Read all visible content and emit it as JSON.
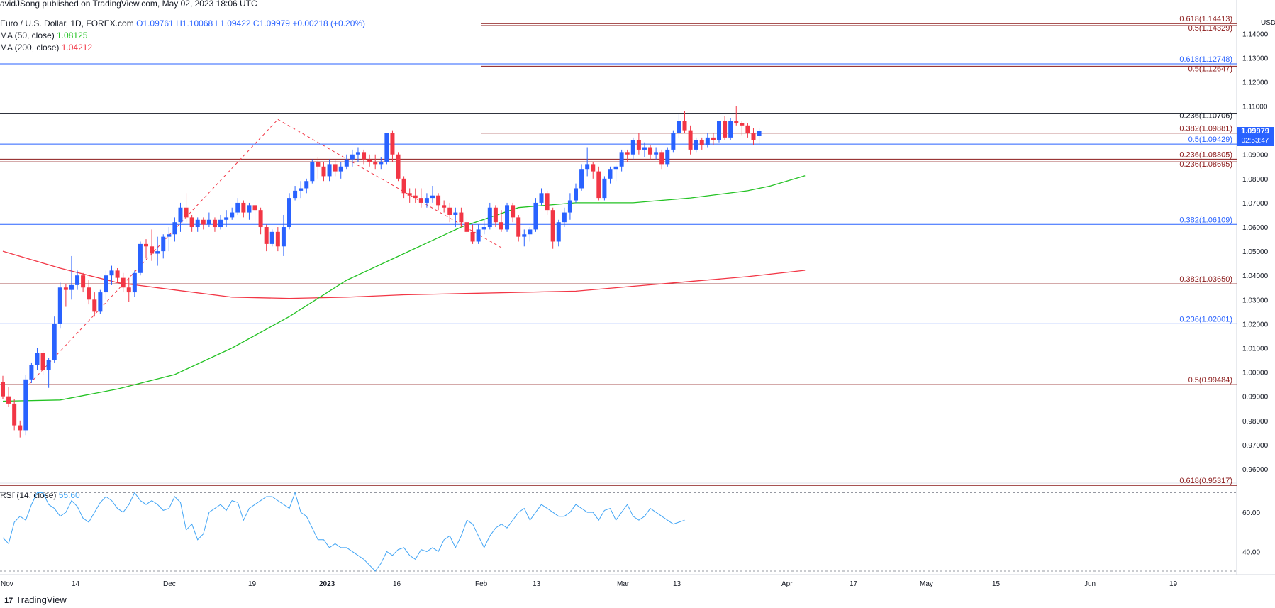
{
  "header": {
    "credit": "avidJSong published on TradingView.com, May 02, 2023 18:06 UTC",
    "symbol": "Euro / U.S. Dollar, 1D, FOREX.com",
    "ohlc": {
      "o": "O1.09761",
      "h": "H1.10068",
      "l": "L1.09422",
      "c": "C1.09979",
      "chg": "+0.00218 (+0.20%)"
    },
    "ma50_label": "MA (50, close)",
    "ma50_value": "1.08125",
    "ma200_label": "MA (200, close)",
    "ma200_value": "1.04212",
    "rsi_label": "RSI (14, close)",
    "rsi_value": "55.60"
  },
  "price_box": {
    "price": "1.09979",
    "countdown": "02:53:47"
  },
  "brand": "TradingView",
  "colors": {
    "up": "#2962ff",
    "down": "#f23645",
    "ma50": "#23c223",
    "ma200": "#f23645",
    "fib_red": "#8b1a1a",
    "fib_blue": "#2962ff",
    "rsi": "#42a5f5"
  },
  "chart_data": {
    "type": "candlestick",
    "currency": "USD",
    "ylim": [
      0.955,
      1.148
    ],
    "y_ticks": [
      "1.14000",
      "1.13000",
      "1.12000",
      "1.11000",
      "1.10000",
      "1.09000",
      "1.08000",
      "1.07000",
      "1.06000",
      "1.05000",
      "1.04000",
      "1.03000",
      "1.02000",
      "1.01000",
      "1.00000",
      "0.99000",
      "0.98000",
      "0.97000",
      "0.96000"
    ],
    "x_ticks": [
      "Nov",
      "14",
      "Dec",
      "19",
      "2023",
      "16",
      "Feb",
      "13",
      "Mar",
      "13",
      "Apr",
      "17",
      "May",
      "15",
      "Jun",
      "19"
    ],
    "fib_levels": [
      {
        "label": "0.618(1.14413)",
        "value": 1.14413,
        "color": "red"
      },
      {
        "label": "0.5(1.14329)",
        "value": 1.14329,
        "color": "red"
      },
      {
        "label": "0.618(1.12748)",
        "value": 1.12748,
        "color": "blue"
      },
      {
        "label": "0.5(1.12647)",
        "value": 1.12647,
        "color": "red"
      },
      {
        "label": "0.382(1.09881)",
        "value": 1.09881,
        "color": "red"
      },
      {
        "label": "0.236(1.10706)",
        "value": 1.10706,
        "color": "black"
      },
      {
        "label": "0.5(1.09429)",
        "value": 1.09429,
        "color": "blue"
      },
      {
        "label": "0.236(1.08805)",
        "value": 1.08805,
        "color": "red"
      },
      {
        "label": "0.236(1.08695)",
        "value": 1.08695,
        "color": "red"
      },
      {
        "label": "0.382(1.06109)",
        "value": 1.06109,
        "color": "blue"
      },
      {
        "label": "0.382(1.03650)",
        "value": 1.0365,
        "color": "red"
      },
      {
        "label": "0.236(1.02001)",
        "value": 1.02001,
        "color": "blue"
      },
      {
        "label": "0.5(0.99484)",
        "value": 0.99484,
        "color": "red"
      },
      {
        "label": "0.618(0.95317)",
        "value": 0.95317,
        "color": "red"
      }
    ],
    "candles_ohlc": [
      [
        0.996,
        0.9985,
        0.989,
        0.99
      ],
      [
        0.99,
        0.994,
        0.9855,
        0.987
      ],
      [
        0.987,
        0.989,
        0.976,
        0.978
      ],
      [
        0.978,
        0.98,
        0.973,
        0.976
      ],
      [
        0.976,
        0.999,
        0.974,
        0.997
      ],
      [
        0.997,
        1.004,
        0.9955,
        1.003
      ],
      [
        1.003,
        1.01,
        1.001,
        1.008
      ],
      [
        1.008,
        1.009,
        0.999,
        1.001
      ],
      [
        1.001,
        1.006,
        0.9935,
        1.005
      ],
      [
        1.005,
        1.023,
        1.004,
        1.02
      ],
      [
        1.02,
        1.037,
        1.018,
        1.035
      ],
      [
        1.035,
        1.0365,
        1.027,
        1.034
      ],
      [
        1.034,
        1.048,
        1.03,
        1.036
      ],
      [
        1.036,
        1.042,
        1.034,
        1.04
      ],
      [
        1.04,
        1.041,
        1.033,
        1.035
      ],
      [
        1.035,
        1.038,
        1.028,
        1.03
      ],
      [
        1.03,
        1.033,
        1.023,
        1.025
      ],
      [
        1.025,
        1.034,
        1.024,
        1.033
      ],
      [
        1.033,
        1.042,
        1.03,
        1.04
      ],
      [
        1.04,
        1.044,
        1.036,
        1.042
      ],
      [
        1.042,
        1.043,
        1.037,
        1.039
      ],
      [
        1.039,
        1.041,
        1.033,
        1.035
      ],
      [
        1.035,
        1.039,
        1.029,
        1.033
      ],
      [
        1.033,
        1.042,
        1.031,
        1.041
      ],
      [
        1.041,
        1.054,
        1.04,
        1.053
      ],
      [
        1.053,
        1.055,
        1.047,
        1.052
      ],
      [
        1.052,
        1.059,
        1.046,
        1.049
      ],
      [
        1.049,
        1.056,
        1.044,
        1.05
      ],
      [
        1.05,
        1.057,
        1.047,
        1.056
      ],
      [
        1.056,
        1.06,
        1.05,
        1.057
      ],
      [
        1.057,
        1.064,
        1.054,
        1.062
      ],
      [
        1.062,
        1.07,
        1.058,
        1.068
      ],
      [
        1.068,
        1.074,
        1.062,
        1.064
      ],
      [
        1.064,
        1.065,
        1.058,
        1.06
      ],
      [
        1.06,
        1.064,
        1.058,
        1.063
      ],
      [
        1.063,
        1.064,
        1.059,
        1.061
      ],
      [
        1.061,
        1.066,
        1.06,
        1.063
      ],
      [
        1.063,
        1.064,
        1.058,
        1.06
      ],
      [
        1.06,
        1.065,
        1.059,
        1.063
      ],
      [
        1.063,
        1.067,
        1.06,
        1.064
      ],
      [
        1.064,
        1.068,
        1.063,
        1.066
      ],
      [
        1.066,
        1.072,
        1.065,
        1.07
      ],
      [
        1.07,
        1.071,
        1.064,
        1.066
      ],
      [
        1.066,
        1.07,
        1.063,
        1.069
      ],
      [
        1.069,
        1.071,
        1.062,
        1.067
      ],
      [
        1.067,
        1.068,
        1.057,
        1.06
      ],
      [
        1.06,
        1.061,
        1.05,
        1.053
      ],
      [
        1.053,
        1.059,
        1.052,
        1.058
      ],
      [
        1.058,
        1.06,
        1.05,
        1.052
      ],
      [
        1.052,
        1.065,
        1.048,
        1.06
      ],
      [
        1.06,
        1.074,
        1.059,
        1.072
      ],
      [
        1.072,
        1.077,
        1.071,
        1.075
      ],
      [
        1.075,
        1.079,
        1.072,
        1.076
      ],
      [
        1.076,
        1.08,
        1.074,
        1.079
      ],
      [
        1.079,
        1.088,
        1.078,
        1.087
      ],
      [
        1.087,
        1.089,
        1.08,
        1.085
      ],
      [
        1.085,
        1.087,
        1.079,
        1.081
      ],
      [
        1.081,
        1.088,
        1.079,
        1.086
      ],
      [
        1.086,
        1.088,
        1.081,
        1.083
      ],
      [
        1.083,
        1.087,
        1.08,
        1.085
      ],
      [
        1.085,
        1.09,
        1.084,
        1.088
      ],
      [
        1.088,
        1.092,
        1.085,
        1.09
      ],
      [
        1.09,
        1.093,
        1.087,
        1.091
      ],
      [
        1.091,
        1.092,
        1.086,
        1.088
      ],
      [
        1.088,
        1.09,
        1.085,
        1.087
      ],
      [
        1.087,
        1.09,
        1.084,
        1.086
      ],
      [
        1.086,
        1.089,
        1.084,
        1.087
      ],
      [
        1.087,
        1.097,
        1.086,
        1.099
      ],
      [
        1.099,
        1.1,
        1.087,
        1.09
      ],
      [
        1.09,
        1.091,
        1.079,
        1.08
      ],
      [
        1.08,
        1.081,
        1.072,
        1.074
      ],
      [
        1.074,
        1.076,
        1.07,
        1.073
      ],
      [
        1.073,
        1.076,
        1.07,
        1.072
      ],
      [
        1.072,
        1.076,
        1.068,
        1.07
      ],
      [
        1.07,
        1.074,
        1.068,
        1.072
      ],
      [
        1.072,
        1.077,
        1.07,
        1.073
      ],
      [
        1.073,
        1.074,
        1.067,
        1.069
      ],
      [
        1.069,
        1.071,
        1.066,
        1.068
      ],
      [
        1.068,
        1.07,
        1.062,
        1.065
      ],
      [
        1.065,
        1.068,
        1.06,
        1.066
      ],
      [
        1.066,
        1.068,
        1.06,
        1.062
      ],
      [
        1.062,
        1.064,
        1.057,
        1.058
      ],
      [
        1.058,
        1.061,
        1.053,
        1.054
      ],
      [
        1.054,
        1.061,
        1.053,
        1.059
      ],
      [
        1.059,
        1.063,
        1.057,
        1.06
      ],
      [
        1.06,
        1.07,
        1.059,
        1.068
      ],
      [
        1.068,
        1.069,
        1.06,
        1.062
      ],
      [
        1.062,
        1.067,
        1.058,
        1.059
      ],
      [
        1.059,
        1.07,
        1.058,
        1.069
      ],
      [
        1.069,
        1.07,
        1.062,
        1.064
      ],
      [
        1.064,
        1.065,
        1.054,
        1.056
      ],
      [
        1.056,
        1.059,
        1.052,
        1.057
      ],
      [
        1.057,
        1.06,
        1.054,
        1.059
      ],
      [
        1.059,
        1.072,
        1.058,
        1.07
      ],
      [
        1.07,
        1.076,
        1.069,
        1.074
      ],
      [
        1.074,
        1.075,
        1.065,
        1.067
      ],
      [
        1.067,
        1.068,
        1.051,
        1.054
      ],
      [
        1.054,
        1.063,
        1.052,
        1.062
      ],
      [
        1.062,
        1.068,
        1.06,
        1.066
      ],
      [
        1.066,
        1.074,
        1.063,
        1.071
      ],
      [
        1.071,
        1.078,
        1.07,
        1.076
      ],
      [
        1.076,
        1.086,
        1.075,
        1.084
      ],
      [
        1.084,
        1.093,
        1.081,
        1.086
      ],
      [
        1.086,
        1.087,
        1.08,
        1.083
      ],
      [
        1.083,
        1.085,
        1.071,
        1.072
      ],
      [
        1.072,
        1.081,
        1.071,
        1.08
      ],
      [
        1.08,
        1.085,
        1.078,
        1.084
      ],
      [
        1.084,
        1.086,
        1.079,
        1.085
      ],
      [
        1.085,
        1.092,
        1.083,
        1.091
      ],
      [
        1.091,
        1.092,
        1.087,
        1.09
      ],
      [
        1.09,
        1.097,
        1.088,
        1.096
      ],
      [
        1.096,
        1.099,
        1.09,
        1.092
      ],
      [
        1.092,
        1.095,
        1.089,
        1.093
      ],
      [
        1.093,
        1.094,
        1.088,
        1.09
      ],
      [
        1.09,
        1.093,
        1.088,
        1.091
      ],
      [
        1.091,
        1.092,
        1.084,
        1.086
      ],
      [
        1.086,
        1.093,
        1.085,
        1.092
      ],
      [
        1.092,
        1.1,
        1.091,
        1.099
      ],
      [
        1.099,
        1.107,
        1.097,
        1.104
      ],
      [
        1.104,
        1.108,
        1.099,
        1.1
      ],
      [
        1.1,
        1.102,
        1.09,
        1.092
      ],
      [
        1.092,
        1.097,
        1.091,
        1.096
      ],
      [
        1.096,
        1.097,
        1.092,
        1.094
      ],
      [
        1.094,
        1.099,
        1.093,
        1.097
      ],
      [
        1.097,
        1.099,
        1.094,
        1.096
      ],
      [
        1.096,
        1.104,
        1.095,
        1.104
      ],
      [
        1.104,
        1.106,
        1.096,
        1.097
      ],
      [
        1.097,
        1.105,
        1.096,
        1.104
      ],
      [
        1.104,
        1.11,
        1.102,
        1.103
      ],
      [
        1.103,
        1.104,
        1.098,
        1.102
      ],
      [
        1.102,
        1.103,
        1.097,
        1.099
      ],
      [
        1.099,
        1.101,
        1.094,
        1.096
      ],
      [
        1.0976,
        1.1007,
        1.0942,
        1.0998
      ]
    ],
    "ma50": [
      [
        0,
        0.988
      ],
      [
        10,
        0.9885
      ],
      [
        20,
        0.993
      ],
      [
        30,
        0.999
      ],
      [
        40,
        1.01
      ],
      [
        50,
        1.023
      ],
      [
        60,
        1.038
      ],
      [
        70,
        1.049
      ],
      [
        80,
        1.06
      ],
      [
        90,
        1.068
      ],
      [
        100,
        1.07
      ],
      [
        110,
        1.07
      ],
      [
        120,
        1.072
      ],
      [
        130,
        1.075
      ],
      [
        134,
        1.077
      ],
      [
        140,
        1.0812
      ]
    ],
    "ma200": [
      [
        0,
        1.05
      ],
      [
        10,
        1.043
      ],
      [
        20,
        1.037
      ],
      [
        30,
        1.034
      ],
      [
        40,
        1.031
      ],
      [
        50,
        1.0305
      ],
      [
        60,
        1.031
      ],
      [
        70,
        1.032
      ],
      [
        80,
        1.0325
      ],
      [
        90,
        1.033
      ],
      [
        100,
        1.0335
      ],
      [
        110,
        1.0355
      ],
      [
        120,
        1.0375
      ],
      [
        130,
        1.0395
      ],
      [
        140,
        1.0421
      ]
    ],
    "rsi": {
      "ylim": [
        30,
        72
      ],
      "levels": [
        70,
        30
      ],
      "ticks": [
        "60.00",
        "40.00"
      ],
      "values": [
        47,
        44,
        55,
        58,
        56,
        64,
        70,
        70,
        64,
        62,
        58,
        60,
        66,
        63,
        57,
        55,
        60,
        65,
        68,
        66,
        62,
        60,
        64,
        70,
        66,
        64,
        66,
        64,
        61,
        62,
        68,
        65,
        51,
        54,
        46,
        49,
        60,
        62,
        64,
        61,
        66,
        65,
        56,
        62,
        64,
        66,
        68,
        68,
        66,
        64,
        62,
        70,
        60,
        58,
        52,
        46,
        46,
        42,
        44,
        42,
        42,
        40,
        38,
        36,
        33,
        30,
        34,
        40,
        38,
        41,
        42,
        38,
        36,
        41,
        40,
        42,
        40,
        46,
        48,
        42,
        48,
        56,
        54,
        48,
        42,
        48,
        52,
        54,
        52,
        56,
        60,
        62,
        56,
        60,
        64,
        62,
        60,
        58,
        58,
        60,
        64,
        62,
        60,
        60,
        56,
        61,
        62,
        56,
        60,
        64,
        58,
        56,
        58,
        62,
        60,
        58,
        56,
        54,
        55,
        56
      ]
    },
    "swing_lines": [
      {
        "from": [
          4,
          0.9935
        ],
        "to": [
          48,
          1.1045
        ],
        "style": "dashed"
      },
      {
        "from": [
          48,
          1.1045
        ],
        "to": [
          87,
          1.0515
        ],
        "style": "dashed"
      }
    ]
  }
}
